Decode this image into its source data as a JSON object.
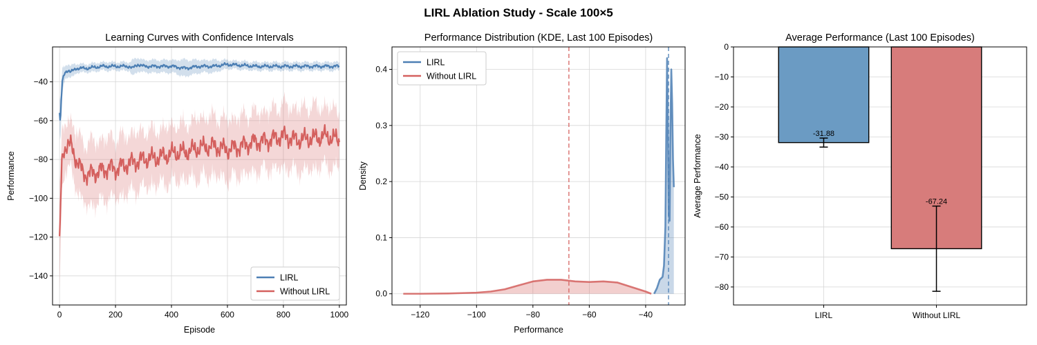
{
  "figure_title": "LIRL Ablation Study - Scale 100×5",
  "colors": {
    "lirl": "#4c7fb4",
    "without": "#d4605e",
    "lirl_bar": "#6b9bc3",
    "without_bar": "#d77c7b"
  },
  "chart_data": [
    {
      "type": "line",
      "title": "Learning Curves with Confidence Intervals",
      "xlabel": "Episode",
      "ylabel": "Performance",
      "xlim": [
        -25,
        1025
      ],
      "ylim": [
        -155,
        -22
      ],
      "xticks": [
        0,
        200,
        400,
        600,
        800,
        1000
      ],
      "yticks": [
        -140,
        -120,
        -100,
        -80,
        -60,
        -40
      ],
      "grid": true,
      "legend": {
        "placement": "lower-right",
        "entries": [
          "LIRL",
          "Without LIRL"
        ]
      },
      "series": [
        {
          "name": "LIRL",
          "x": [
            0,
            3,
            6,
            10,
            15,
            20,
            30,
            40,
            50,
            60,
            80,
            100,
            150,
            200,
            250,
            260,
            280,
            300,
            350,
            400,
            450,
            500,
            550,
            600,
            700,
            800,
            900,
            1000
          ],
          "y": [
            -56,
            -62,
            -50,
            -40,
            -37,
            -35,
            -34,
            -35,
            -34,
            -33,
            -33,
            -33,
            -32,
            -32,
            -32,
            -33,
            -31,
            -32,
            -32,
            -32,
            -33,
            -32,
            -32,
            -31,
            -32,
            -32,
            -32,
            -32
          ],
          "band_half_width": [
            8,
            10,
            9,
            6,
            4,
            3,
            3,
            3,
            3,
            2,
            2,
            2,
            2,
            2,
            2,
            4,
            3,
            3,
            3,
            3,
            4,
            3,
            3,
            2,
            2,
            2,
            2,
            2
          ]
        },
        {
          "name": "Without LIRL",
          "x": [
            0,
            3,
            8,
            15,
            25,
            40,
            60,
            80,
            100,
            120,
            150,
            180,
            200,
            250,
            300,
            350,
            400,
            450,
            500,
            550,
            600,
            650,
            700,
            750,
            800,
            850,
            900,
            950,
            1000
          ],
          "y": [
            -124,
            -110,
            -83,
            -75,
            -72,
            -73,
            -80,
            -86,
            -88,
            -87,
            -86,
            -84,
            -85,
            -82,
            -80,
            -79,
            -77,
            -76,
            -74,
            -73,
            -75,
            -73,
            -71,
            -70,
            -68,
            -70,
            -69,
            -68,
            -70
          ],
          "band_half_width": [
            24,
            20,
            12,
            10,
            10,
            11,
            12,
            13,
            14,
            14,
            14,
            13,
            13,
            13,
            12,
            12,
            12,
            12,
            13,
            13,
            13,
            13,
            13,
            13,
            14,
            14,
            14,
            13,
            13
          ]
        }
      ]
    },
    {
      "type": "area",
      "title": "Performance Distribution (KDE, Last 100 Episodes)",
      "xlabel": "Performance",
      "ylabel": "Density",
      "xlim": [
        -130,
        -26
      ],
      "ylim": [
        -0.02,
        0.44
      ],
      "xticks": [
        -120,
        -100,
        -80,
        -60,
        -40
      ],
      "yticks": [
        0.0,
        0.1,
        0.2,
        0.3,
        0.4
      ],
      "ytick_labels": [
        "0.0",
        "0.1",
        "0.2",
        "0.3",
        "0.4"
      ],
      "grid": true,
      "legend": {
        "placement": "top-left",
        "entries": [
          "LIRL",
          "Without LIRL"
        ]
      },
      "mean_lines": [
        {
          "series": "LIRL",
          "x": -31.88
        },
        {
          "series": "Without LIRL",
          "x": -67.24
        }
      ],
      "series": [
        {
          "name": "LIRL",
          "x": [
            -37,
            -36,
            -35,
            -34,
            -33.5,
            -33,
            -32.7,
            -32.4,
            -32.1,
            -31.8,
            -31.5,
            -31.2,
            -30.9,
            -30.6,
            -30.3,
            -30
          ],
          "y": [
            0.0,
            0.01,
            0.025,
            0.03,
            0.05,
            0.12,
            0.28,
            0.42,
            0.3,
            0.14,
            0.13,
            0.3,
            0.4,
            0.34,
            0.24,
            0.19
          ]
        },
        {
          "name": "Without LIRL",
          "x": [
            -126,
            -120,
            -110,
            -100,
            -95,
            -90,
            -85,
            -80,
            -75,
            -70,
            -65,
            -60,
            -55,
            -50,
            -45,
            -40,
            -38
          ],
          "y": [
            0.0,
            0.0,
            0.0005,
            0.002,
            0.004,
            0.008,
            0.015,
            0.022,
            0.025,
            0.025,
            0.022,
            0.021,
            0.022,
            0.02,
            0.012,
            0.004,
            0.0
          ]
        }
      ]
    },
    {
      "type": "bar",
      "title": "Average Performance (Last 100 Episodes)",
      "xlabel": "",
      "ylabel": "Average Performance",
      "categories": [
        "LIRL",
        "Without LIRL"
      ],
      "values": [
        -31.88,
        -67.24
      ],
      "value_labels": [
        "-31.88",
        "-67.24"
      ],
      "errors": [
        1.5,
        14.2
      ],
      "ylim": [
        -86,
        0
      ],
      "yticks": [
        0,
        -10,
        -20,
        -30,
        -40,
        -50,
        -60,
        -70,
        -80
      ],
      "grid": true
    }
  ]
}
